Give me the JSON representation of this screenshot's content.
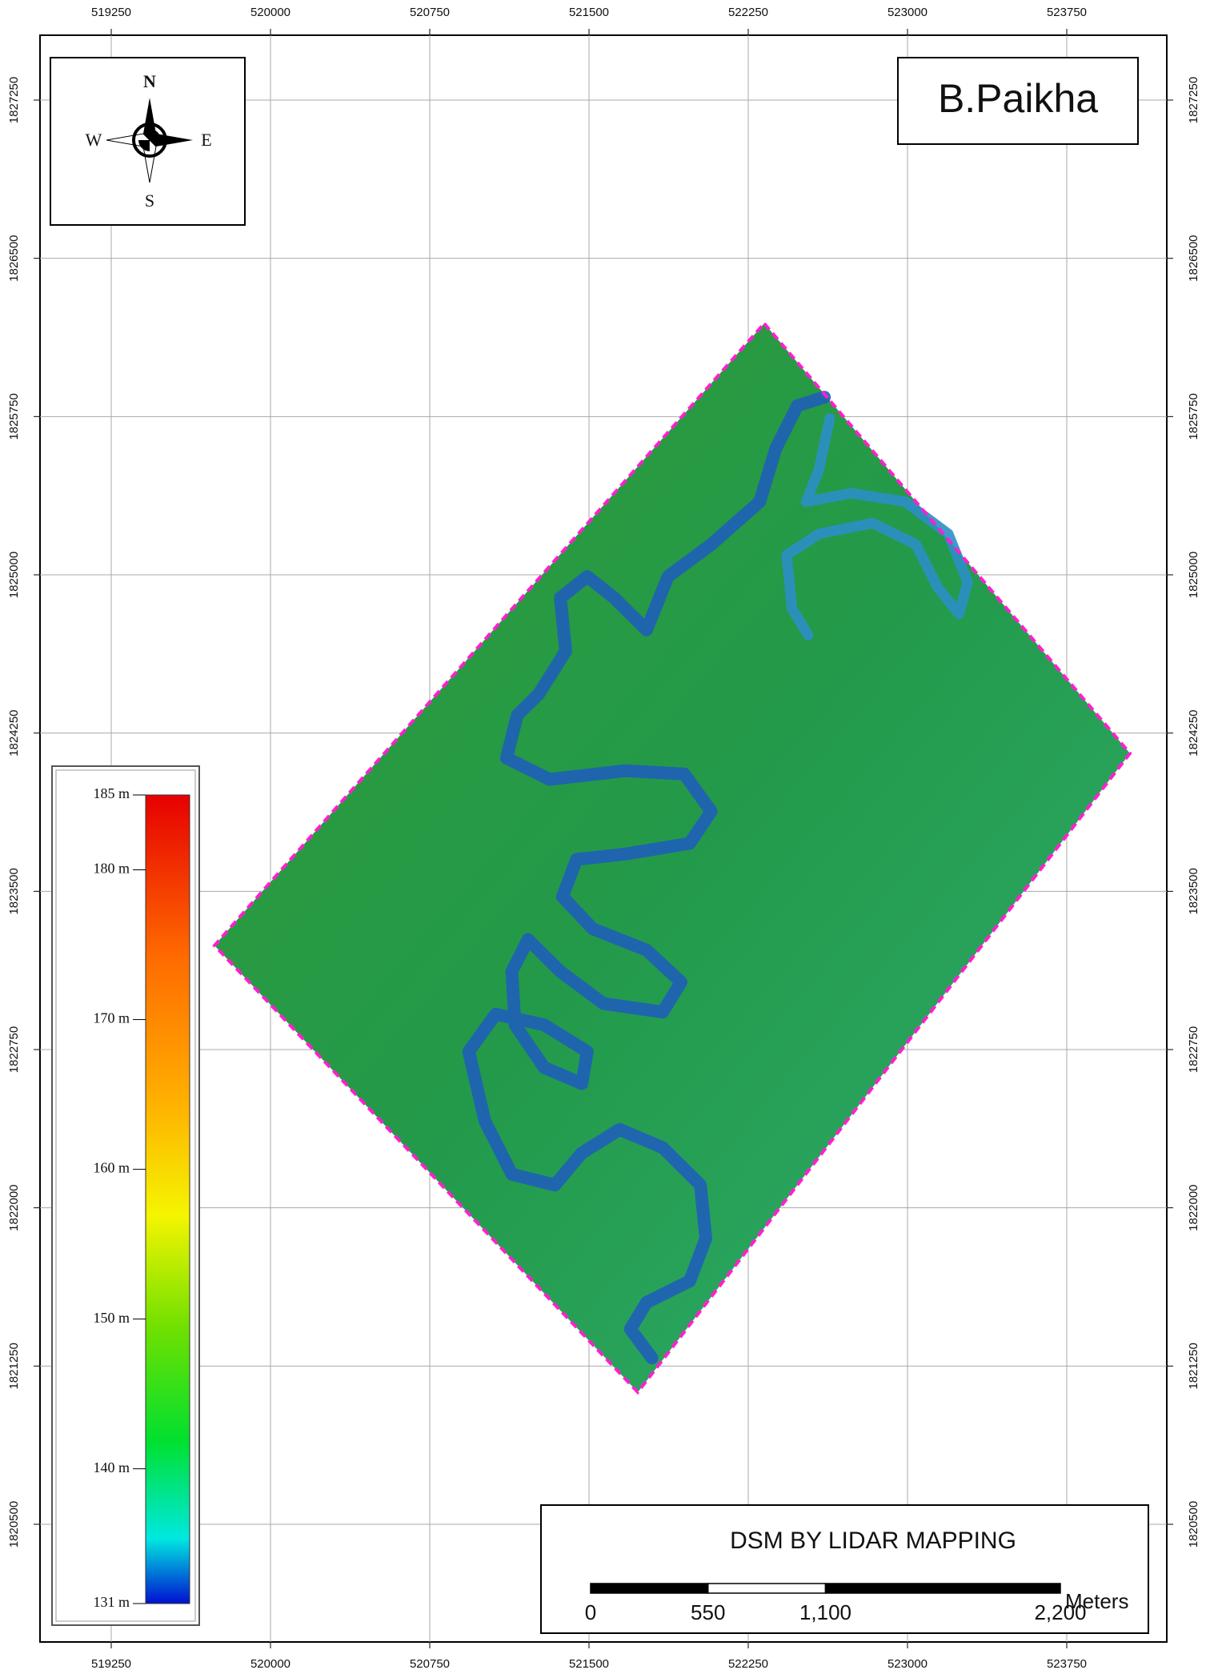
{
  "map": {
    "title": "B.Paikha",
    "subtitle": "DSM BY LIDAR MAPPING",
    "compass": {
      "n": "N",
      "e": "E",
      "s": "S",
      "w": "W"
    },
    "grid": {
      "xticks": [
        519250,
        520000,
        520750,
        521500,
        522250,
        523000,
        523750
      ],
      "yticks": [
        1827250,
        1826500,
        1825750,
        1825000,
        1824250,
        1823500,
        1822750,
        1822000,
        1821250,
        1820500
      ]
    },
    "legend": {
      "ticks": [
        {
          "value": 185,
          "label": "185 m"
        },
        {
          "value": 180,
          "label": "180 m"
        },
        {
          "value": 170,
          "label": "170 m"
        },
        {
          "value": 160,
          "label": "160 m"
        },
        {
          "value": 150,
          "label": "150 m"
        },
        {
          "value": 140,
          "label": "140 m"
        },
        {
          "value": 131,
          "label": "131 m"
        }
      ]
    },
    "scale_bar": {
      "unit": "Meters",
      "ticks": [
        0,
        550,
        {
          "value": 1100,
          "label": "1,100"
        },
        {
          "value": 2200,
          "label": "2,200"
        }
      ]
    }
  }
}
